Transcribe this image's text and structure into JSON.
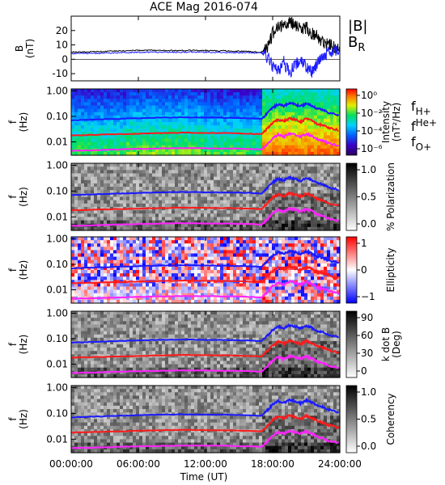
{
  "title": "ACE Mag 2016-074",
  "xlabel": "Time (UT)",
  "x_ticks": [
    "00:00:00",
    "06:00:00",
    "12:00:00",
    "18:00:00",
    "24:00:00"
  ],
  "colors": {
    "h_plus": "#1a1aff",
    "he_plus": "#ff1a1a",
    "o_plus": "#ff22ff",
    "b_total": "#000000",
    "b_r": "#1a1aff"
  },
  "chart_data": [
    {
      "type": "line",
      "ylabel": "B",
      "yunit": "(nT)",
      "ylim": [
        -15,
        30
      ],
      "y_ticks": [
        "20",
        "10",
        "0",
        "-10"
      ],
      "x_range_hours": [
        0,
        24
      ],
      "legend": [
        {
          "text": "|B|",
          "color": "#000000"
        },
        {
          "text": "B",
          "sub": "R",
          "color": "#1a1aff"
        }
      ],
      "series": [
        {
          "name": "|B|",
          "x": [
            0,
            1,
            2,
            3,
            4,
            5,
            6,
            7,
            8,
            9,
            10,
            11,
            12,
            13,
            14,
            15,
            16,
            17,
            17.5,
            18,
            18.5,
            19,
            19.5,
            20,
            20.5,
            21,
            21.5,
            22,
            22.5,
            23,
            23.5,
            24
          ],
          "values": [
            5,
            5,
            5.2,
            5.5,
            5.8,
            6,
            6.2,
            6.3,
            6.2,
            6,
            6.1,
            6.2,
            6.1,
            5.9,
            5.8,
            5.6,
            5.3,
            5,
            8,
            18,
            22,
            24,
            26,
            24,
            20,
            22,
            18,
            16,
            12,
            10,
            8,
            9
          ]
        },
        {
          "name": "B_R",
          "x": [
            0,
            1,
            2,
            3,
            4,
            5,
            6,
            7,
            8,
            9,
            10,
            11,
            12,
            13,
            14,
            15,
            16,
            17,
            17.5,
            18,
            18.5,
            19,
            19.5,
            20,
            20.5,
            21,
            21.5,
            22,
            22.5,
            23,
            23.5,
            24
          ],
          "values": [
            4,
            4,
            4.1,
            4.3,
            4.5,
            4.7,
            4.9,
            5,
            4.9,
            4.8,
            4.9,
            5,
            4.9,
            4.8,
            4.7,
            4.6,
            4.5,
            4.3,
            2,
            -5,
            -8,
            -2,
            -10,
            -4,
            0,
            -6,
            -9,
            -3,
            2,
            5,
            6,
            7
          ]
        }
      ]
    },
    {
      "type": "heatmap",
      "ylabel": "f",
      "yunit": "(Hz)",
      "y_scale": "log",
      "ylim": [
        0.003,
        1.2
      ],
      "y_ticks": [
        "1.00",
        "0.10",
        "0.01"
      ],
      "colorbar_label": "Intensity",
      "colorbar_unit": "(nT²/Hz)",
      "colorbar_ticks": [
        "10⁰",
        "10⁻²",
        "10⁻⁴",
        "10⁻⁶"
      ],
      "line_labels": [
        {
          "text": "f",
          "sub": "H+",
          "color": "#1a1aff"
        },
        {
          "text": "f",
          "sup": "He+",
          "color": "#ff1a1a"
        },
        {
          "text": "f",
          "sub": "O+",
          "color": "#ff22ff"
        }
      ]
    },
    {
      "type": "heatmap",
      "ylabel": "f",
      "yunit": "(Hz)",
      "y_scale": "log",
      "ylim": [
        0.003,
        1.2
      ],
      "y_ticks": [
        "1.00",
        "0.10",
        "0.01"
      ],
      "colorbar_label": "% Polarization",
      "colorbar_ticks": [
        "1.0",
        "0.5",
        "0.0"
      ]
    },
    {
      "type": "heatmap",
      "ylabel": "f",
      "yunit": "(Hz)",
      "y_scale": "log",
      "ylim": [
        0.003,
        1.2
      ],
      "y_ticks": [
        "1.00",
        "0.10",
        "0.01"
      ],
      "colorbar_label": "Ellipticity",
      "colorbar_ticks": [
        "1",
        "0",
        "−1"
      ]
    },
    {
      "type": "heatmap",
      "ylabel": "f",
      "yunit": "(Hz)",
      "y_scale": "log",
      "ylim": [
        0.003,
        1.2
      ],
      "y_ticks": [
        "1.00",
        "0.10",
        "0.01"
      ],
      "colorbar_label": "k dot B",
      "colorbar_unit": "(Deg)",
      "colorbar_ticks": [
        "90",
        "60",
        "30",
        "0"
      ]
    },
    {
      "type": "heatmap",
      "ylabel": "f",
      "yunit": "(Hz)",
      "y_scale": "log",
      "ylim": [
        0.003,
        1.2
      ],
      "y_ticks": [
        "1.00",
        "0.10",
        "0.01"
      ],
      "colorbar_label": "Coherency",
      "colorbar_ticks": [
        "1.0",
        "0.5",
        "0.0"
      ]
    }
  ],
  "gyrofrequency_lines": {
    "x": [
      0,
      2,
      4,
      6,
      8,
      10,
      12,
      14,
      16,
      17,
      17.5,
      18,
      18.5,
      19,
      19.5,
      20,
      20.5,
      21,
      21.5,
      22,
      22.5,
      23,
      24
    ],
    "f_h_plus": [
      0.07,
      0.075,
      0.08,
      0.085,
      0.09,
      0.092,
      0.09,
      0.088,
      0.085,
      0.08,
      0.13,
      0.22,
      0.3,
      0.26,
      0.34,
      0.3,
      0.25,
      0.32,
      0.27,
      0.2,
      0.18,
      0.14,
      0.11
    ],
    "f_he_plus": [
      0.018,
      0.019,
      0.02,
      0.021,
      0.022,
      0.023,
      0.0225,
      0.022,
      0.021,
      0.02,
      0.033,
      0.055,
      0.075,
      0.065,
      0.085,
      0.075,
      0.062,
      0.08,
      0.068,
      0.05,
      0.045,
      0.035,
      0.028
    ],
    "f_o_plus": [
      0.0045,
      0.0047,
      0.005,
      0.0053,
      0.0055,
      0.0057,
      0.0056,
      0.0055,
      0.0053,
      0.005,
      0.008,
      0.014,
      0.019,
      0.016,
      0.021,
      0.019,
      0.016,
      0.02,
      0.017,
      0.0125,
      0.011,
      0.0088,
      0.007
    ]
  }
}
